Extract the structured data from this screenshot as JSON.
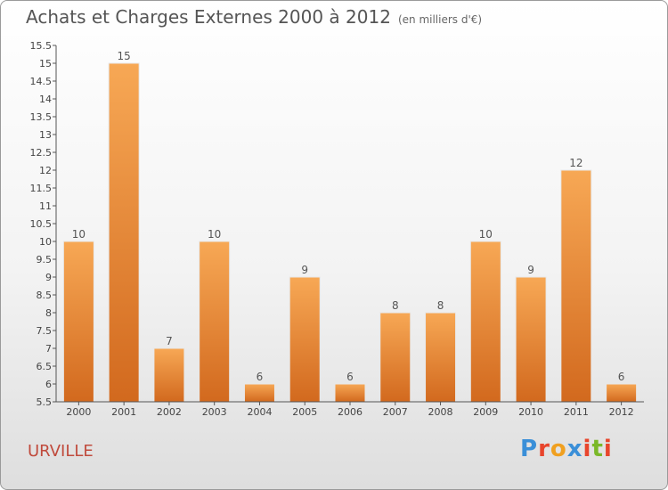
{
  "header": {
    "title": "Achats et Charges Externes 2000 à 2012",
    "subtitle": "(en milliers d'€)"
  },
  "footer": {
    "commune": "URVILLE",
    "logo_text": "Proxiti",
    "logo_colors": [
      "#3a8fd8",
      "#e8452c",
      "#f0a020",
      "#3a8fd8",
      "#e8452c",
      "#7ab828",
      "#e8452c"
    ]
  },
  "colors": {
    "bar_top": "#f7a855",
    "bar_bottom": "#d2691e",
    "axis": "#555555",
    "grid": "#dddddd"
  },
  "chart_data": {
    "type": "bar",
    "categories": [
      "2000",
      "2001",
      "2002",
      "2003",
      "2004",
      "2005",
      "2006",
      "2007",
      "2008",
      "2009",
      "2010",
      "2011",
      "2012"
    ],
    "values": [
      10,
      15,
      7,
      10,
      6,
      9,
      6,
      8,
      8,
      10,
      9,
      12,
      6
    ],
    "data_labels": [
      "10",
      "15",
      "7",
      "10",
      "6",
      "9",
      "6",
      "8",
      "8",
      "10",
      "9",
      "12",
      "6"
    ],
    "title": "Achats et Charges Externes 2000 à 2012",
    "ylim": [
      5.5,
      15.5
    ],
    "yticks": [
      5.5,
      6,
      6.5,
      7,
      7.5,
      8,
      8.5,
      9,
      9.5,
      10,
      10.5,
      11,
      11.5,
      12,
      12.5,
      13,
      13.5,
      14,
      14.5,
      15,
      15.5
    ],
    "ytick_labels": [
      "5.5",
      "6",
      "6.5",
      "7",
      "7.5",
      "8",
      "8.5",
      "9",
      "9.5",
      "10",
      "10.5",
      "11",
      "11.5",
      "12",
      "12.5",
      "13",
      "13.5",
      "14",
      "14.5",
      "15",
      "15.5"
    ],
    "grid": false
  }
}
